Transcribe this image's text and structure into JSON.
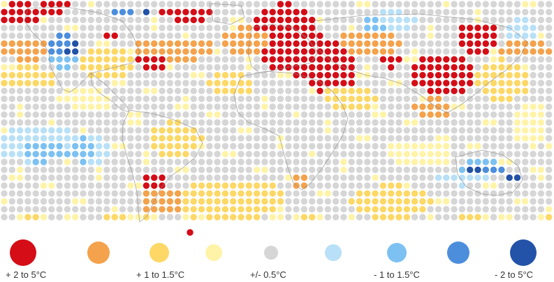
{
  "legend": {
    "items": [
      {
        "label": "+ 2 to 5°C",
        "color": "#d40d17"
      },
      {
        "label": "",
        "color": "#f4a24c"
      },
      {
        "label": "+ 1 to 1.5°C",
        "color": "#fdd866"
      },
      {
        "label": "",
        "color": "#fff3a8"
      },
      {
        "label": "+/- 0.5°C",
        "color": "#d6d6d6"
      },
      {
        "label": "",
        "color": "#b8e0f7"
      },
      {
        "label": "- 1 to 1.5°C",
        "color": "#7cc1f2"
      },
      {
        "label": "",
        "color": "#4c8edc"
      },
      {
        "label": "- 2 to 5°C",
        "color": "#2353a8"
      }
    ]
  }
}
